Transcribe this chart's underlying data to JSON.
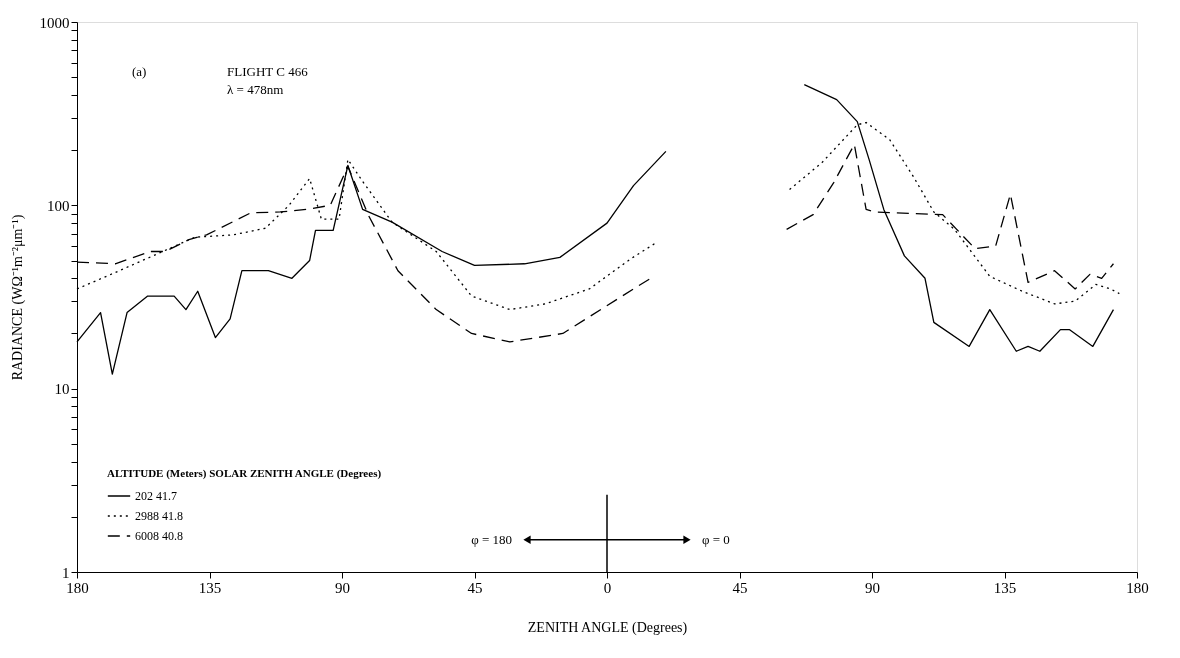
{
  "chart_data": {
    "type": "line",
    "xlabel": "ZENITH ANGLE (Degrees)",
    "ylabel": "RADIANCE (WΩ⁻¹m⁻²μm⁻¹)",
    "legend_title": "ALTITUDE (Meters)   SOLAR ZENITH ANGLE (Degrees)",
    "annotations": [
      "(a)",
      "FLIGHT C 466",
      "λ = 478nm",
      "φ = 180",
      "φ = 0"
    ],
    "log": "y",
    "grid": false,
    "legend": "bottom left",
    "marker": "none",
    "xlim": [
      -180,
      180
    ],
    "xticks": [
      {
        "value": -180,
        "label": "180"
      },
      {
        "value": -135,
        "label": "135"
      },
      {
        "value": -90,
        "label": "90"
      },
      {
        "value": -45,
        "label": "45"
      },
      0,
      45,
      90,
      135,
      180
    ],
    "ylim": [
      1,
      1000
    ],
    "yticks": [
      1,
      {
        "value": 2,
        "label": null
      },
      {
        "value": 3,
        "label": null
      },
      {
        "value": 4,
        "label": null
      },
      {
        "value": 5,
        "label": null
      },
      {
        "value": 6,
        "label": null
      },
      {
        "value": 7,
        "label": null
      },
      {
        "value": 8,
        "label": null
      },
      {
        "value": 9,
        "label": null
      },
      10,
      {
        "value": 20,
        "label": null
      },
      {
        "value": 30,
        "label": null
      },
      {
        "value": 40,
        "label": null
      },
      {
        "value": 50,
        "label": null
      },
      {
        "value": 60,
        "label": null
      },
      {
        "value": 70,
        "label": null
      },
      {
        "value": 80,
        "label": null
      },
      {
        "value": 90,
        "label": null
      },
      100,
      {
        "value": 200,
        "label": null
      },
      {
        "value": 300,
        "label": null
      },
      {
        "value": 400,
        "label": null
      },
      {
        "value": 500,
        "label": null
      },
      {
        "value": 600,
        "label": null
      },
      {
        "value": 700,
        "label": null
      },
      {
        "value": 800,
        "label": null
      },
      {
        "value": 900,
        "label": null
      },
      1000
    ],
    "series": [
      {
        "name": "202    41.7",
        "color": "#000000",
        "line_style": "solid",
        "x": [
          -180,
          -172,
          -168,
          -163,
          -156,
          -147,
          -143,
          -139,
          -133,
          -128,
          -124,
          -115,
          -107,
          -101,
          -99,
          -93,
          -88,
          -83,
          -73,
          -56,
          -45,
          -28,
          -16,
          0,
          9,
          20,
          null,
          67,
          78,
          85,
          89,
          94,
          101,
          108,
          111,
          123,
          130,
          139,
          143,
          147,
          154,
          157,
          165,
          172
        ],
        "values": [
          18,
          26,
          12,
          26,
          32,
          32,
          27,
          34,
          19,
          24,
          44,
          44,
          40,
          50,
          73,
          73,
          165,
          95,
          81,
          56,
          47,
          48,
          52,
          80,
          128,
          197,
          null,
          455,
          377,
          286,
          178,
          95,
          53,
          40,
          23,
          17,
          27,
          16,
          17,
          16,
          21,
          21,
          17,
          27
        ]
      },
      {
        "name": "2988    41.8",
        "color": "#000000",
        "line_style": "dotted",
        "x": [
          -180,
          -167,
          -152,
          -140,
          -127,
          -116,
          -108,
          -101,
          -97,
          -91,
          -88,
          -83,
          -73,
          -58,
          -46,
          -33,
          -21,
          -6,
          8,
          17,
          null,
          62,
          73,
          85,
          88,
          96,
          104,
          111,
          118,
          130,
          141,
          152,
          159,
          166,
          171,
          174
        ],
        "values": [
          35,
          43,
          55,
          67,
          69,
          75,
          100,
          140,
          84,
          84,
          178,
          135,
          81,
          56,
          32,
          27,
          29,
          35,
          51,
          63,
          null,
          122,
          171,
          275,
          283,
          228,
          144,
          92,
          74,
          41,
          34,
          29,
          30,
          37,
          35,
          33
        ]
      },
      {
        "name": "6008    40.8",
        "color": "#000000",
        "line_style": "dashed",
        "x": [
          -180,
          -167,
          -155,
          -150,
          -142,
          -136,
          -121,
          -111,
          -102,
          -94,
          -88,
          -81,
          -71,
          -58,
          -46,
          -33,
          -15,
          9,
          16,
          null,
          61,
          70,
          77,
          84,
          88,
          91,
          114,
          125,
          132,
          137,
          143,
          152,
          159,
          164,
          168,
          172
        ],
        "values": [
          49,
          48,
          56,
          56,
          65,
          69,
          91,
          92,
          95,
          100,
          163,
          88,
          44,
          27,
          20,
          18,
          20,
          35,
          41,
          null,
          74,
          89,
          133,
          215,
          95,
          92,
          89,
          58,
          60,
          115,
          38,
          44,
          35,
          42,
          40,
          48
        ]
      }
    ]
  }
}
